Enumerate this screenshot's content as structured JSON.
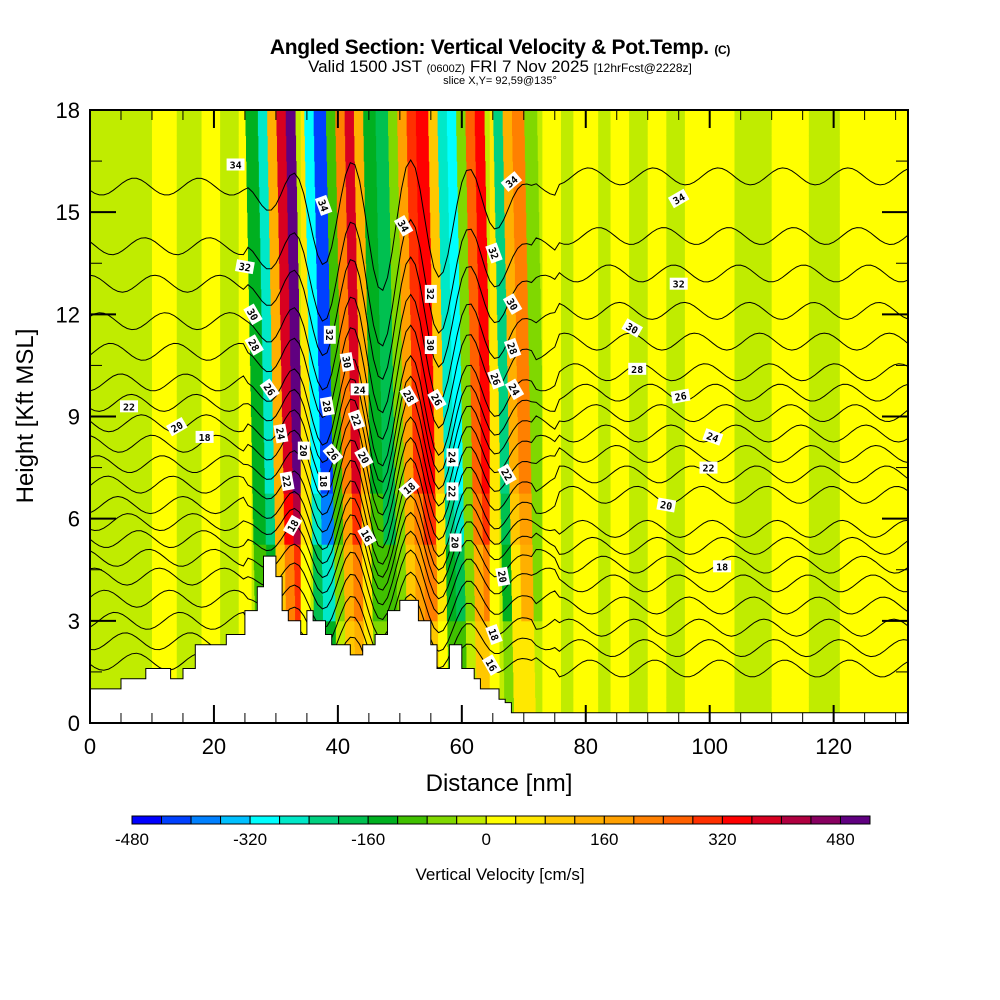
{
  "header": {
    "title": "Angled Section: Vertical Velocity & Pot.Temp.",
    "title_mark": "(C)",
    "valid_prefix": "Valid 1500 JST",
    "valid_utc": "(0600Z)",
    "valid_date": "FRI 7 Nov 2025",
    "fcst": "[12hrFcst@2228z]",
    "slice": "slice X,Y= 92,59@135°"
  },
  "chart_data": {
    "type": "heatmap",
    "title": "Angled Section: Vertical Velocity & Pot.Temp.",
    "xlabel": "Distance [nm]",
    "ylabel": "Height [Kft MSL]",
    "xlim": [
      0,
      132
    ],
    "ylim": [
      0,
      18
    ],
    "x_ticks": [
      0,
      20,
      40,
      60,
      80,
      100,
      120
    ],
    "x_minor_step": 5,
    "y_ticks": [
      0,
      3,
      6,
      9,
      12,
      15,
      18
    ],
    "y_minor_step": 1.5,
    "grid": false,
    "colorbar": {
      "title": "Vertical Velocity [cm/s]",
      "placement": "bottom",
      "levels_start": -480,
      "level_step": 40,
      "tick_labels": [
        "-480",
        "-320",
        "-160",
        "0",
        "160",
        "320",
        "480"
      ],
      "tick_values": [
        -480,
        -320,
        -160,
        0,
        160,
        320,
        480
      ],
      "colors": [
        "#0000ff",
        "#0040ff",
        "#0080ff",
        "#00c0ff",
        "#00ffff",
        "#00e8c8",
        "#00d080",
        "#00c050",
        "#00b020",
        "#40c000",
        "#80d800",
        "#c0ec00",
        "#ffff00",
        "#ffe800",
        "#ffc800",
        "#ffb000",
        "#ffa000",
        "#ff8000",
        "#ff6000",
        "#ff3000",
        "#ff0000",
        "#d80020",
        "#b00040",
        "#880060",
        "#600080"
      ]
    },
    "vertical_velocity_bands": [
      {
        "x0": 0,
        "x1": 4,
        "value": -20
      },
      {
        "x0": 4,
        "x1": 10,
        "value": -30
      },
      {
        "x0": 10,
        "x1": 14,
        "value": 10
      },
      {
        "x0": 14,
        "x1": 18,
        "value": -20
      },
      {
        "x0": 18,
        "x1": 21,
        "value": 20
      },
      {
        "x0": 21,
        "x1": 24,
        "value": -40
      },
      {
        "x0": 24,
        "x1": 26,
        "value": 30
      },
      {
        "x0": 26,
        "x1": 28,
        "value": -150
      },
      {
        "x0": 28,
        "x1": 29.5,
        "value": -250
      },
      {
        "x0": 29.5,
        "x1": 31,
        "value": 150
      },
      {
        "x0": 31,
        "x1": 32.5,
        "value": 380
      },
      {
        "x0": 32.5,
        "x1": 34,
        "value": 480
      },
      {
        "x0": 34,
        "x1": 35.5,
        "value": 60
      },
      {
        "x0": 35.5,
        "x1": 37,
        "value": -300
      },
      {
        "x0": 37,
        "x1": 39,
        "value": -440
      },
      {
        "x0": 39,
        "x1": 40.5,
        "value": -100
      },
      {
        "x0": 40.5,
        "x1": 42,
        "value": 230
      },
      {
        "x0": 42,
        "x1": 43.5,
        "value": 360
      },
      {
        "x0": 43.5,
        "x1": 45,
        "value": 120
      },
      {
        "x0": 45,
        "x1": 47,
        "value": -140
      },
      {
        "x0": 47,
        "x1": 49,
        "value": -200
      },
      {
        "x0": 49,
        "x1": 50.5,
        "value": -80
      },
      {
        "x0": 50.5,
        "x1": 52,
        "value": 160
      },
      {
        "x0": 52,
        "x1": 53.5,
        "value": 280
      },
      {
        "x0": 53.5,
        "x1": 55.5,
        "value": 340
      },
      {
        "x0": 55.5,
        "x1": 57,
        "value": 80
      },
      {
        "x0": 57,
        "x1": 58.5,
        "value": -260
      },
      {
        "x0": 58.5,
        "x1": 60,
        "value": -320
      },
      {
        "x0": 60,
        "x1": 61.5,
        "value": -80
      },
      {
        "x0": 61.5,
        "x1": 63,
        "value": 240
      },
      {
        "x0": 63,
        "x1": 64.5,
        "value": 340
      },
      {
        "x0": 64.5,
        "x1": 66,
        "value": 60
      },
      {
        "x0": 66,
        "x1": 67.5,
        "value": -220
      },
      {
        "x0": 67.5,
        "x1": 69,
        "value": 120
      },
      {
        "x0": 69,
        "x1": 71,
        "value": 200
      },
      {
        "x0": 71,
        "x1": 73,
        "value": -80
      },
      {
        "x0": 73,
        "x1": 76,
        "value": 30
      },
      {
        "x0": 76,
        "x1": 78,
        "value": -30
      },
      {
        "x0": 78,
        "x1": 82,
        "value": 10
      },
      {
        "x0": 82,
        "x1": 84,
        "value": -40
      },
      {
        "x0": 84,
        "x1": 87,
        "value": 10
      },
      {
        "x0": 87,
        "x1": 90,
        "value": -30
      },
      {
        "x0": 90,
        "x1": 93,
        "value": 15
      },
      {
        "x0": 93,
        "x1": 96,
        "value": -20
      },
      {
        "x0": 96,
        "x1": 104,
        "value": 10
      },
      {
        "x0": 104,
        "x1": 110,
        "value": -20
      },
      {
        "x0": 110,
        "x1": 116,
        "value": 10
      },
      {
        "x0": 116,
        "x1": 121,
        "value": -20
      },
      {
        "x0": 121,
        "x1": 132,
        "value": 10
      }
    ],
    "terrain": {
      "x": [
        0,
        5,
        5,
        9,
        9,
        13,
        13,
        15,
        15,
        17,
        17,
        22,
        22,
        25,
        25,
        27,
        27,
        28,
        28,
        30,
        30,
        31,
        31,
        32,
        32,
        34,
        34,
        35,
        35,
        36,
        36,
        38,
        38,
        39,
        39,
        42,
        42,
        44,
        44,
        46,
        46,
        48,
        48,
        50,
        50,
        53,
        53,
        55,
        55,
        56,
        56,
        58,
        58,
        60,
        60,
        62,
        62,
        63,
        63,
        66,
        66,
        67,
        67,
        68,
        68,
        71,
        71,
        132
      ],
      "height": [
        1.0,
        1.0,
        1.3,
        1.3,
        1.6,
        1.6,
        1.3,
        1.3,
        1.6,
        1.6,
        2.3,
        2.3,
        2.6,
        2.6,
        3.3,
        3.3,
        4.0,
        4.0,
        4.9,
        4.9,
        4.3,
        4.3,
        3.3,
        3.3,
        3.0,
        3.0,
        2.6,
        2.6,
        3.3,
        3.3,
        3.0,
        3.0,
        2.6,
        2.6,
        2.3,
        2.3,
        2.0,
        2.0,
        2.3,
        2.3,
        2.6,
        2.6,
        3.3,
        3.3,
        3.6,
        3.6,
        3.0,
        3.0,
        2.3,
        2.3,
        1.6,
        1.6,
        2.3,
        2.3,
        1.6,
        1.6,
        1.3,
        1.3,
        1.0,
        1.0,
        0.7,
        0.7,
        0.6,
        0.6,
        0.3,
        0.3,
        0.3,
        0.3
      ]
    },
    "theta_contours": {
      "field": "Potential Temperature",
      "levels": [
        16,
        18,
        20,
        22,
        24,
        26,
        28,
        30,
        32,
        34
      ],
      "labels": [
        {
          "text": "34",
          "x": 23.5,
          "y": 16.4,
          "angle": 0
        },
        {
          "text": "32",
          "x": 25.0,
          "y": 13.4,
          "angle": 10
        },
        {
          "text": "30",
          "x": 26.3,
          "y": 12.0,
          "angle": 60
        },
        {
          "text": "28",
          "x": 26.5,
          "y": 11.1,
          "angle": 60
        },
        {
          "text": "26",
          "x": 29.0,
          "y": 9.8,
          "angle": 55
        },
        {
          "text": "24",
          "x": 30.8,
          "y": 8.5,
          "angle": 80
        },
        {
          "text": "22",
          "x": 31.8,
          "y": 7.1,
          "angle": 80
        },
        {
          "text": "18",
          "x": 32.7,
          "y": 5.8,
          "angle": -60
        },
        {
          "text": "20",
          "x": 34.5,
          "y": 8.0,
          "angle": 90
        },
        {
          "text": "34",
          "x": 37.7,
          "y": 15.2,
          "angle": 70
        },
        {
          "text": "32",
          "x": 38.7,
          "y": 11.4,
          "angle": 90
        },
        {
          "text": "28",
          "x": 38.3,
          "y": 9.3,
          "angle": 80
        },
        {
          "text": "26",
          "x": 39.2,
          "y": 7.9,
          "angle": 50
        },
        {
          "text": "18",
          "x": 37.8,
          "y": 7.1,
          "angle": 90
        },
        {
          "text": "30",
          "x": 41.5,
          "y": 10.6,
          "angle": 80
        },
        {
          "text": "24",
          "x": 43.5,
          "y": 9.8,
          "angle": 0
        },
        {
          "text": "22",
          "x": 43.0,
          "y": 8.9,
          "angle": 70
        },
        {
          "text": "20",
          "x": 44.2,
          "y": 7.8,
          "angle": 60
        },
        {
          "text": "16",
          "x": 44.7,
          "y": 5.5,
          "angle": 60
        },
        {
          "text": "34",
          "x": 50.6,
          "y": 14.6,
          "angle": 60
        },
        {
          "text": "28",
          "x": 51.5,
          "y": 9.6,
          "angle": 60
        },
        {
          "text": "18",
          "x": 51.5,
          "y": 6.9,
          "angle": -40
        },
        {
          "text": "32",
          "x": 55.0,
          "y": 12.6,
          "angle": 90
        },
        {
          "text": "30",
          "x": 55.0,
          "y": 11.1,
          "angle": 90
        },
        {
          "text": "26",
          "x": 56.0,
          "y": 9.5,
          "angle": 60
        },
        {
          "text": "24",
          "x": 58.5,
          "y": 7.8,
          "angle": 90
        },
        {
          "text": "22",
          "x": 58.5,
          "y": 6.8,
          "angle": 90
        },
        {
          "text": "20",
          "x": 59.0,
          "y": 5.3,
          "angle": 90
        },
        {
          "text": "34",
          "x": 68.0,
          "y": 15.9,
          "angle": -40
        },
        {
          "text": "32",
          "x": 65.2,
          "y": 13.8,
          "angle": 70
        },
        {
          "text": "30",
          "x": 68.2,
          "y": 12.3,
          "angle": 60
        },
        {
          "text": "28",
          "x": 68.2,
          "y": 11.0,
          "angle": 70
        },
        {
          "text": "26",
          "x": 65.5,
          "y": 10.1,
          "angle": 70
        },
        {
          "text": "24",
          "x": 68.5,
          "y": 9.8,
          "angle": 60
        },
        {
          "text": "22",
          "x": 67.3,
          "y": 7.3,
          "angle": 60
        },
        {
          "text": "20",
          "x": 66.6,
          "y": 4.3,
          "angle": 80
        },
        {
          "text": "18",
          "x": 65.2,
          "y": 2.6,
          "angle": 70
        },
        {
          "text": "16",
          "x": 64.8,
          "y": 1.7,
          "angle": 60
        },
        {
          "text": "22",
          "x": 6.3,
          "y": 9.3,
          "angle": 0
        },
        {
          "text": "20",
          "x": 14.0,
          "y": 8.7,
          "angle": -30
        },
        {
          "text": "18",
          "x": 18.5,
          "y": 8.4,
          "angle": 0
        },
        {
          "text": "34",
          "x": 95.0,
          "y": 15.4,
          "angle": -30
        },
        {
          "text": "32",
          "x": 95.0,
          "y": 12.9,
          "angle": 0
        },
        {
          "text": "30",
          "x": 87.5,
          "y": 11.6,
          "angle": 30
        },
        {
          "text": "28",
          "x": 88.3,
          "y": 10.4,
          "angle": 0
        },
        {
          "text": "26",
          "x": 95.3,
          "y": 9.6,
          "angle": -10
        },
        {
          "text": "24",
          "x": 100.5,
          "y": 8.4,
          "angle": 20
        },
        {
          "text": "22",
          "x": 99.8,
          "y": 7.5,
          "angle": 0
        },
        {
          "text": "20",
          "x": 93.0,
          "y": 6.4,
          "angle": 10
        },
        {
          "text": "18",
          "x": 102.0,
          "y": 4.6,
          "angle": 0
        }
      ]
    }
  }
}
